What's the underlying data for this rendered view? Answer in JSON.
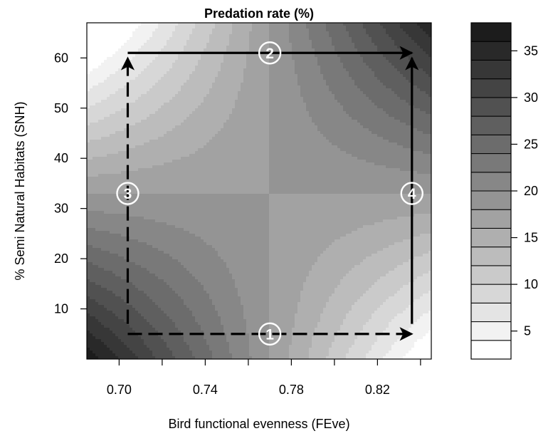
{
  "chart_data": {
    "type": "heatmap",
    "title": "Predation rate (%)",
    "xlabel": "Bird functional evenness (FEve)",
    "ylabel": "% Semi Natural Habitats (SNH)",
    "xlim": [
      0.685,
      0.845
    ],
    "ylim": [
      0,
      67
    ],
    "x_ticks": [
      0.7,
      0.74,
      0.78,
      0.82
    ],
    "x_tick_labels": [
      "0.70",
      "0.74",
      "0.78",
      "0.82"
    ],
    "y_ticks": [
      10,
      20,
      30,
      40,
      50,
      60
    ],
    "y_tick_labels": [
      "10",
      "20",
      "30",
      "40",
      "50",
      "60"
    ],
    "surface": {
      "center_x": 0.77,
      "center_y": 33,
      "center_value": 18,
      "saddle_coefficient": 0.55,
      "corner_values": {
        "bottom_left": 38,
        "bottom_right": 4,
        "top_left": 4,
        "top_right": 38
      }
    },
    "colorbar": {
      "range": [
        2,
        38
      ],
      "step": 2,
      "tick_values": [
        5,
        10,
        15,
        20,
        25,
        30,
        35
      ],
      "tick_labels": [
        "5",
        "10",
        "15",
        "20",
        "25",
        "30",
        "35"
      ],
      "color_low": "#ffffff",
      "color_high": "#1c1c1c"
    },
    "arrows": [
      {
        "label": "1",
        "from": [
          0.704,
          5
        ],
        "to": [
          0.836,
          5
        ],
        "style": "dashed",
        "label_at": [
          0.77,
          5
        ]
      },
      {
        "label": "2",
        "from": [
          0.704,
          61
        ],
        "to": [
          0.836,
          61
        ],
        "style": "solid",
        "label_at": [
          0.77,
          61
        ]
      },
      {
        "label": "3",
        "from": [
          0.704,
          7
        ],
        "to": [
          0.704,
          60
        ],
        "style": "dashed",
        "label_at": [
          0.704,
          33
        ]
      },
      {
        "label": "4",
        "from": [
          0.836,
          7
        ],
        "to": [
          0.836,
          60
        ],
        "style": "solid",
        "label_at": [
          0.836,
          33
        ]
      }
    ],
    "grid": false,
    "legend": "right colorbar"
  }
}
